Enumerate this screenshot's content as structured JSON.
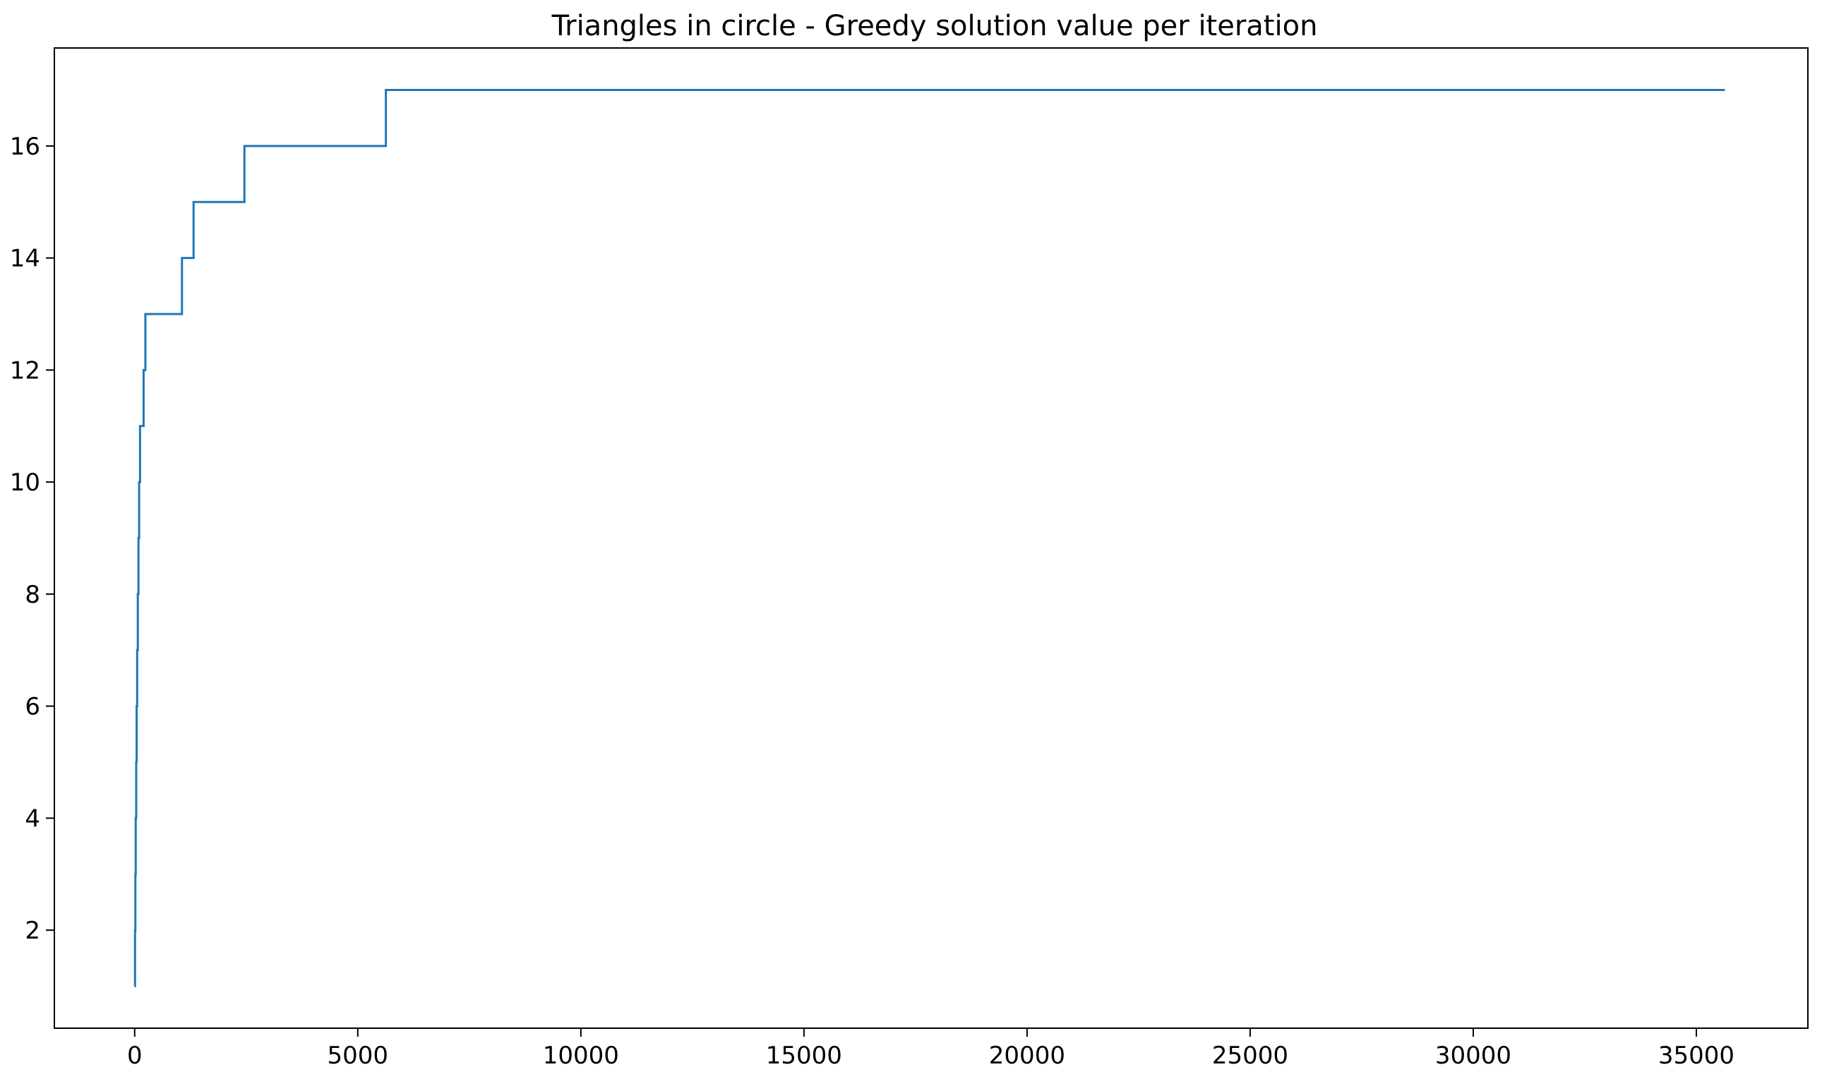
{
  "chart_data": {
    "type": "line",
    "title": "Triangles in circle - Greedy solution value per iteration",
    "xlabel": "",
    "ylabel": "",
    "xlim": [
      -1800,
      37500
    ],
    "ylim": [
      0.25,
      17.75
    ],
    "x_ticks": [
      0,
      5000,
      10000,
      15000,
      20000,
      25000,
      30000,
      35000
    ],
    "x_tick_labels": [
      "0",
      "5000",
      "10000",
      "15000",
      "20000",
      "25000",
      "30000",
      "35000"
    ],
    "y_ticks": [
      2,
      4,
      6,
      8,
      10,
      12,
      14,
      16
    ],
    "y_tick_labels": [
      "2",
      "4",
      "6",
      "8",
      "10",
      "12",
      "14",
      "16"
    ],
    "grid": false,
    "legend": "none",
    "series": [
      {
        "color": "#1f77b4",
        "step": true,
        "x": [
          0,
          8,
          16,
          24,
          34,
          44,
          56,
          70,
          85,
          100,
          120,
          140,
          200,
          240,
          1060,
          1320,
          2460,
          5630,
          35640
        ],
        "y": [
          1,
          2,
          3,
          4,
          5,
          6,
          7,
          8,
          9,
          10,
          11,
          11,
          12,
          13,
          14,
          15,
          16,
          17,
          17
        ]
      }
    ]
  }
}
